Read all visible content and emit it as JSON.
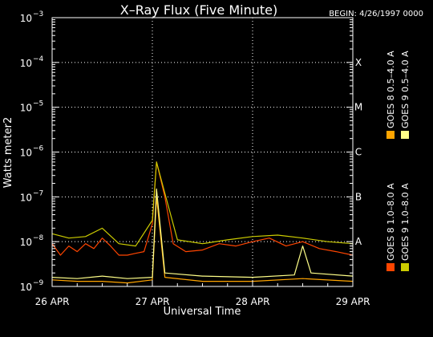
{
  "chart_data": {
    "type": "line",
    "title": "X–Ray Flux (Five Minute)",
    "begin_label": "BEGIN: 4/26/1997 0000",
    "xlabel": "Universal Time",
    "ylabel": "Watts meter2",
    "y_scale": "log",
    "ylim": [
      1e-09,
      0.001
    ],
    "xlim": [
      "1997-04-26T00:00",
      "1997-04-29T00:00"
    ],
    "x_ticks": [
      {
        "x": "1997-04-26T00:00",
        "label": "26 APR"
      },
      {
        "x": "1997-04-27T00:00",
        "label": "27 APR"
      },
      {
        "x": "1997-04-28T00:00",
        "label": "28 APR"
      },
      {
        "x": "1997-04-29T00:00",
        "label": "29 APR"
      }
    ],
    "y_ticks": [
      {
        "exp": -9,
        "label": "10",
        "sup": "−9"
      },
      {
        "exp": -8,
        "label": "10",
        "sup": "−8"
      },
      {
        "exp": -7,
        "label": "10",
        "sup": "−7"
      },
      {
        "exp": -6,
        "label": "10",
        "sup": "−6"
      },
      {
        "exp": -5,
        "label": "10",
        "sup": "−5"
      },
      {
        "exp": -4,
        "label": "10",
        "sup": "−4"
      },
      {
        "exp": -3,
        "label": "10",
        "sup": "−3"
      }
    ],
    "flare_classes": [
      {
        "label": "A",
        "exp": -8
      },
      {
        "label": "B",
        "exp": -7
      },
      {
        "label": "C",
        "exp": -6
      },
      {
        "label": "M",
        "exp": -5
      },
      {
        "label": "X",
        "exp": -4
      }
    ],
    "grid": true,
    "legend_position": "right",
    "series": [
      {
        "name": "GOES 8 1.0–8.0 A",
        "color": "#ff4500",
        "points": [
          [
            "1997-04-26T00:00",
            9e-09
          ],
          [
            "1997-04-26T02:00",
            5e-09
          ],
          [
            "1997-04-26T04:00",
            8e-09
          ],
          [
            "1997-04-26T06:00",
            6e-09
          ],
          [
            "1997-04-26T08:00",
            9e-09
          ],
          [
            "1997-04-26T10:00",
            7e-09
          ],
          [
            "1997-04-26T12:00",
            1.2e-08
          ],
          [
            "1997-04-26T14:00",
            8e-09
          ],
          [
            "1997-04-26T16:00",
            5e-09
          ],
          [
            "1997-04-26T18:00",
            5e-09
          ],
          [
            "1997-04-26T20:00",
            5.5e-09
          ],
          [
            "1997-04-26T22:00",
            6e-09
          ],
          [
            "1997-04-27T00:00",
            2.5e-08
          ],
          [
            "1997-04-27T01:00",
            6e-07
          ],
          [
            "1997-04-27T03:00",
            1e-07
          ],
          [
            "1997-04-27T05:00",
            9e-09
          ],
          [
            "1997-04-27T08:00",
            6e-09
          ],
          [
            "1997-04-27T12:00",
            6.5e-09
          ],
          [
            "1997-04-27T16:00",
            9e-09
          ],
          [
            "1997-04-27T20:00",
            8e-09
          ],
          [
            "1997-04-28T00:00",
            1e-08
          ],
          [
            "1997-04-28T04:00",
            1.2e-08
          ],
          [
            "1997-04-28T08:00",
            8e-09
          ],
          [
            "1997-04-28T12:00",
            1e-08
          ],
          [
            "1997-04-28T16:00",
            7e-09
          ],
          [
            "1997-04-28T20:00",
            6e-09
          ],
          [
            "1997-04-29T00:00",
            5e-09
          ]
        ]
      },
      {
        "name": "GOES 8 0.5–4.0 A",
        "color": "#ffa500",
        "points": [
          [
            "1997-04-26T00:00",
            1.4e-09
          ],
          [
            "1997-04-26T06:00",
            1.3e-09
          ],
          [
            "1997-04-26T12:00",
            1.3e-09
          ],
          [
            "1997-04-26T18:00",
            1.2e-09
          ],
          [
            "1997-04-27T00:00",
            1.4e-09
          ],
          [
            "1997-04-27T01:00",
            1e-07
          ],
          [
            "1997-04-27T03:00",
            1.6e-09
          ],
          [
            "1997-04-27T12:00",
            1.3e-09
          ],
          [
            "1997-04-28T00:00",
            1.3e-09
          ],
          [
            "1997-04-28T12:00",
            1.5e-09
          ],
          [
            "1997-04-29T00:00",
            1.3e-09
          ]
        ]
      },
      {
        "name": "GOES 9 1.0–8.0 A",
        "color": "#cccc00",
        "points": [
          [
            "1997-04-26T00:00",
            1.5e-08
          ],
          [
            "1997-04-26T04:00",
            1.2e-08
          ],
          [
            "1997-04-26T08:00",
            1.3e-08
          ],
          [
            "1997-04-26T12:00",
            2e-08
          ],
          [
            "1997-04-26T16:00",
            9e-09
          ],
          [
            "1997-04-26T20:00",
            8e-09
          ],
          [
            "1997-04-27T00:00",
            3e-08
          ],
          [
            "1997-04-27T01:00",
            6e-07
          ],
          [
            "1997-04-27T03:00",
            1.2e-07
          ],
          [
            "1997-04-27T06:00",
            1.1e-08
          ],
          [
            "1997-04-27T12:00",
            9e-09
          ],
          [
            "1997-04-27T18:00",
            1.1e-08
          ],
          [
            "1997-04-28T00:00",
            1.3e-08
          ],
          [
            "1997-04-28T06:00",
            1.4e-08
          ],
          [
            "1997-04-28T12:00",
            1.2e-08
          ],
          [
            "1997-04-28T18:00",
            1e-08
          ],
          [
            "1997-04-29T00:00",
            9e-09
          ]
        ]
      },
      {
        "name": "GOES 9 0.5–4.0 A",
        "color": "#ffff88",
        "points": [
          [
            "1997-04-26T00:00",
            1.6e-09
          ],
          [
            "1997-04-26T06:00",
            1.5e-09
          ],
          [
            "1997-04-26T12:00",
            1.7e-09
          ],
          [
            "1997-04-26T18:00",
            1.5e-09
          ],
          [
            "1997-04-27T00:00",
            1.6e-09
          ],
          [
            "1997-04-27T01:00",
            1.5e-07
          ],
          [
            "1997-04-27T03:00",
            2e-09
          ],
          [
            "1997-04-27T12:00",
            1.7e-09
          ],
          [
            "1997-04-28T00:00",
            1.6e-09
          ],
          [
            "1997-04-28T10:00",
            1.8e-09
          ],
          [
            "1997-04-28T12:00",
            8e-09
          ],
          [
            "1997-04-28T14:00",
            2e-09
          ],
          [
            "1997-04-29T00:00",
            1.7e-09
          ]
        ]
      }
    ]
  }
}
